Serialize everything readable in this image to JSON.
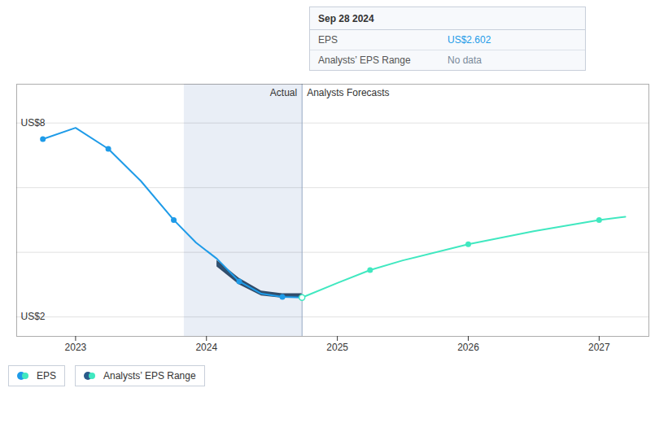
{
  "chart_data": {
    "type": "line",
    "xlim": [
      2022.55,
      2027.38
    ],
    "xticks": [
      2023,
      2024,
      2025,
      2026,
      2027
    ],
    "ylim": [
      1.4,
      9.2
    ],
    "yticks": [
      2,
      4,
      6,
      8
    ],
    "grid": true,
    "tick_labels": "x",
    "legend": "bottom",
    "highlight": [
      2023.83,
      2024.73
    ],
    "divider": 2024.73,
    "series": [
      {
        "name": "Actual",
        "color": "#1e9be8",
        "marker": "circle",
        "x": [
          2022.75,
          2023.0,
          2023.25,
          2023.5,
          2023.75,
          2023.92,
          2024.08,
          2024.25,
          2024.42,
          2024.58,
          2024.73
        ],
        "values": [
          7.5,
          7.85,
          7.2,
          6.2,
          5.0,
          4.3,
          3.8,
          3.1,
          2.72,
          2.62,
          2.602
        ],
        "marker_x": [
          2022.75,
          2023.25,
          2023.75,
          2024.25,
          2024.58,
          2024.73
        ],
        "marker_values": [
          7.5,
          7.2,
          5.0,
          3.1,
          2.62,
          2.602
        ]
      },
      {
        "name": "Analysts Forecasts",
        "color": "#40e8c0",
        "marker": "circle",
        "x": [
          2024.73,
          2025.0,
          2025.25,
          2025.5,
          2026.0,
          2026.5,
          2027.0,
          2027.2
        ],
        "values": [
          2.602,
          3.05,
          3.45,
          3.75,
          4.25,
          4.65,
          5.0,
          5.1
        ],
        "marker_x": [
          2024.73,
          2025.25,
          2026.0,
          2027.0
        ],
        "marker_values": [
          2.602,
          3.45,
          4.25,
          5.0
        ]
      }
    ],
    "range": {
      "name": "Analysts’ EPS Range",
      "color": "#1e3a5a",
      "line_color": "#2a5a80",
      "x": [
        2024.08,
        2024.25,
        2024.42,
        2024.58,
        2024.73
      ],
      "low": [
        3.55,
        3.0,
        2.65,
        2.58,
        2.58
      ],
      "high": [
        3.75,
        3.2,
        2.8,
        2.72,
        2.72
      ],
      "mid": [
        3.65,
        3.1,
        2.725,
        2.65,
        2.65
      ]
    },
    "annotations": [
      {
        "text": "US$8",
        "y": 8
      },
      {
        "text": "US$2",
        "y": 2
      }
    ],
    "legend_entries": [
      {
        "label": "EPS",
        "colors": [
          "#1e9be8",
          "#40e8c0"
        ]
      },
      {
        "label": "Analysts’ EPS Range",
        "colors": [
          "#2a5a8a",
          "#40e8c0"
        ]
      }
    ],
    "tooltip": {
      "title": "Sep 28 2024",
      "rows": [
        {
          "label": "EPS",
          "value": "US$2.602",
          "color": "#1e9be8"
        },
        {
          "label": "Analysts’ EPS Range",
          "value": "No data",
          "color": "#7a8a9a"
        }
      ]
    }
  }
}
